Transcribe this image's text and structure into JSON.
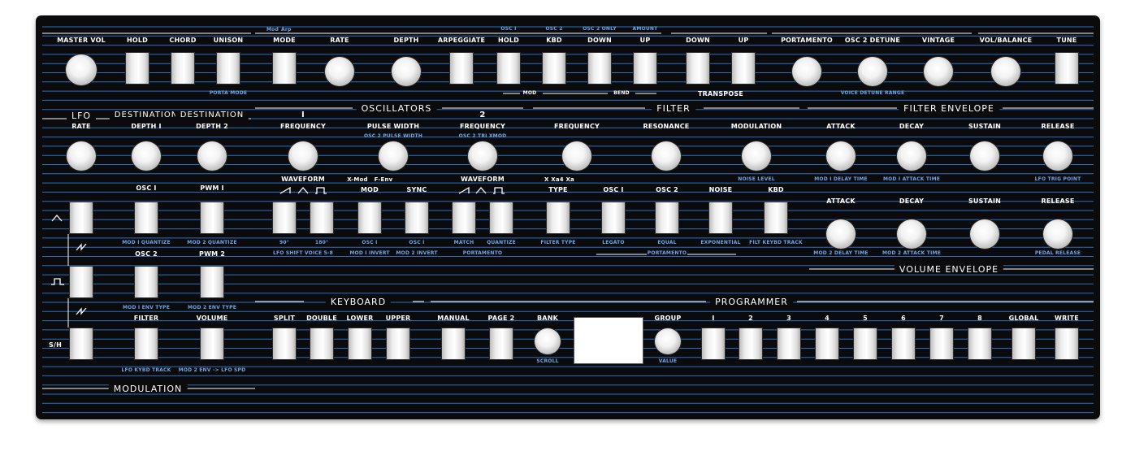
{
  "top": {
    "master_vol": "MASTER VOL",
    "hold": "HOLD",
    "chord": "CHORD",
    "unison": "UNISON",
    "porta_mode": "PORTA MODE",
    "mod_small": "Mod",
    "arp_small": "Arp",
    "mode": "MODE",
    "rate": "RATE",
    "depth": "DEPTH",
    "arpeggiate": "ARPEGGIATE",
    "osc1_hold": "OSC I",
    "hold2": "HOLD",
    "osc2_kbd": "OSC 2",
    "kbd": "KBD",
    "osc2_only": "OSC 2 ONLY",
    "down": "DOWN",
    "amount": "AMOUNT",
    "up": "UP",
    "mod": "MOD",
    "bend": "BEND",
    "t_down": "DOWN",
    "t_up": "UP",
    "transpose": "TRANSPOSE",
    "portamento": "PORTAMENTO",
    "osc2_detune": "OSC 2 DETUNE",
    "vintage": "VINTAGE",
    "voice_detune_range": "VOICE DETUNE RANGE",
    "vol_balance": "VOL/BALANCE",
    "tune": "TUNE"
  },
  "lfo": {
    "lfo": "LFO",
    "destination": "DESTINATION",
    "destination2": "DESTINATION",
    "rate": "RATE",
    "depth1": "DEPTH I",
    "depth2": "DEPTH 2",
    "osc1": "OSC I",
    "pwm1": "PWM I",
    "mod1_quantize": "MOD I QUANTIZE",
    "mod2_quantize": "MOD 2 QUANTIZE",
    "osc2": "OSC 2",
    "pwm2": "PWM 2",
    "mod1_env_type": "MOD I ENV TYPE",
    "mod2_env_type": "MOD 2 ENV TYPE",
    "filter": "FILTER",
    "volume": "VOLUME",
    "lfo_kybd_track": "LFO KYBD TRACK",
    "mod2_env_lfo_spd": "MOD 2 ENV -> LFO SPD",
    "sh": "S/H",
    "modulation": "MODULATION"
  },
  "osc": {
    "title": "OSCILLATORS",
    "one": "I",
    "two": "2",
    "frequency": "FREQUENCY",
    "pulse_width": "PULSE WIDTH",
    "frequency2": "FREQUENCY",
    "osc2_pulse_width": "OSC 2 PULSE WIDTH",
    "osc2_tri_xmod": "OSC 2 TRI XMOD",
    "waveform": "WAVEFORM",
    "xmod": "X-Mod",
    "fenv": "F-Env",
    "mod": "MOD",
    "sync": "SYNC",
    "waveform2": "WAVEFORM",
    "deg90": "90°",
    "deg180": "180°",
    "osc1_a": "OSC I",
    "osc1_b": "OSC I",
    "match": "MATCH",
    "quantize": "QUANTIZE",
    "lfo_shift": "LFO SHIFT VOICE 5-8",
    "mod1_invert": "MOD I INVERT",
    "mod2_invert": "MOD 2 INVERT",
    "portamento": "PORTAMENTO"
  },
  "filter": {
    "title": "FILTER",
    "frequency": "FREQUENCY",
    "resonance": "RESONANCE",
    "modulation": "MODULATION",
    "x_xa4_xa": "X Xa4 Xa",
    "noise_level": "NOISE LEVEL",
    "type": "TYPE",
    "osc1": "OSC I",
    "osc2": "OSC 2",
    "noise": "NOISE",
    "kbd": "KBD",
    "filter_type": "FILTER TYPE",
    "legato": "LEGATO",
    "equal": "EQUAL",
    "exponential": "EXPONENTIAL",
    "filt_keybd_track": "FILT KEYBD TRACK",
    "portamento": "PORTAMENTO"
  },
  "env": {
    "filter_envelope": "FILTER ENVELOPE",
    "attack": "ATTACK",
    "decay": "DECAY",
    "sustain": "SUSTAIN",
    "release": "RELEASE",
    "mod1_delay_time": "MOD I DELAY TIME",
    "mod1_attack_time": "MOD I ATTACK TIME",
    "lfo_trig_point": "LFO TRIG POINT",
    "attack2": "ATTACK",
    "decay2": "DECAY",
    "sustain2": "SUSTAIN",
    "release2": "RELEASE",
    "mod2_delay_time": "MOD 2 DELAY TIME",
    "mod2_attack_time": "MOD 2 ATTACK TIME",
    "pedal_release": "PEDAL RELEASE",
    "volume_envelope": "VOLUME ENVELOPE"
  },
  "keyboard": {
    "title": "KEYBOARD",
    "split": "SPLIT",
    "double": "DOUBLE",
    "lower": "LOWER",
    "upper": "UPPER"
  },
  "programmer": {
    "title": "PROGRAMMER",
    "manual": "MANUAL",
    "page2": "PAGE 2",
    "bank": "BANK",
    "scroll": "SCROLL",
    "group": "GROUP",
    "value": "VALUE",
    "numbers": [
      "I",
      "2",
      "3",
      "4",
      "5",
      "6",
      "7",
      "8"
    ],
    "global": "GLOBAL",
    "write": "WRITE"
  },
  "colors": {
    "panel": "#0b0b0d",
    "stripe": "#2d6fbd",
    "label_white": "#ffffff",
    "label_blue": "#6ba6e6"
  }
}
